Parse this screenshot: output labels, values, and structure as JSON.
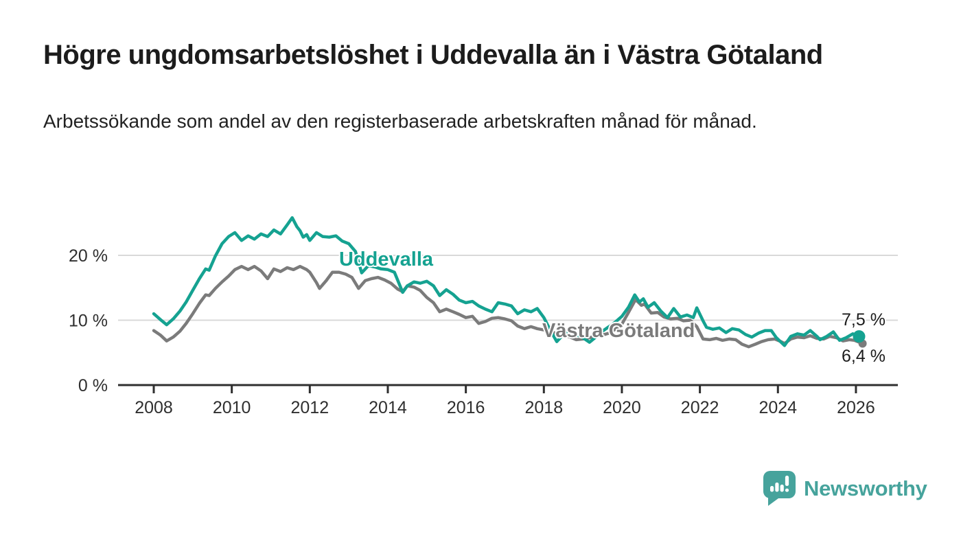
{
  "header": {
    "title": "Högre ungdomsarbetslöshet i Uddevalla än i Västra Götaland",
    "subtitle": "Arbetssökande som andel av den registerbaserade arbetskraften månad för månad."
  },
  "chart_data": {
    "type": "line",
    "title": "Högre ungdomsarbetslöshet i Uddevalla än i Västra Götaland",
    "subtitle": "Arbetssökande som andel av den registerbaserade arbetskraften månad för månad.",
    "grid": "horizontal-only",
    "legend_position": "inline-labels-on-lines",
    "x_axis": {
      "label": "",
      "range": [
        2007.1,
        2027.1
      ],
      "ticks": [
        2008,
        2010,
        2012,
        2014,
        2016,
        2018,
        2020,
        2022,
        2024,
        2026
      ],
      "tick_labels": [
        "2008",
        "2010",
        "2012",
        "2014",
        "2016",
        "2018",
        "2020",
        "2022",
        "2024",
        "2026"
      ]
    },
    "y_axis": {
      "label": "",
      "unit": "%",
      "range": [
        0,
        27
      ],
      "ticks": [
        0,
        10,
        20
      ],
      "tick_labels": [
        "0 %",
        "10 %",
        "20 %"
      ]
    },
    "series": [
      {
        "name": "Uddevalla",
        "color": "#15a291",
        "end_value": 7.5,
        "end_label": "7,5 %",
        "points": [
          [
            2008.0,
            11.0
          ],
          [
            2008.17,
            10.1
          ],
          [
            2008.33,
            9.3
          ],
          [
            2008.5,
            10.2
          ],
          [
            2008.67,
            11.4
          ],
          [
            2008.83,
            12.8
          ],
          [
            2009.0,
            14.6
          ],
          [
            2009.17,
            16.4
          ],
          [
            2009.33,
            17.9
          ],
          [
            2009.42,
            17.7
          ],
          [
            2009.58,
            19.9
          ],
          [
            2009.75,
            21.8
          ],
          [
            2009.92,
            22.9
          ],
          [
            2010.08,
            23.5
          ],
          [
            2010.25,
            22.3
          ],
          [
            2010.42,
            23.0
          ],
          [
            2010.58,
            22.5
          ],
          [
            2010.75,
            23.3
          ],
          [
            2010.92,
            22.9
          ],
          [
            2011.08,
            23.9
          ],
          [
            2011.25,
            23.3
          ],
          [
            2011.42,
            24.7
          ],
          [
            2011.55,
            25.8
          ],
          [
            2011.67,
            24.4
          ],
          [
            2011.75,
            23.8
          ],
          [
            2011.83,
            22.8
          ],
          [
            2011.92,
            23.2
          ],
          [
            2012.0,
            22.3
          ],
          [
            2012.17,
            23.5
          ],
          [
            2012.33,
            22.9
          ],
          [
            2012.5,
            22.8
          ],
          [
            2012.67,
            23.0
          ],
          [
            2012.83,
            22.2
          ],
          [
            2013.0,
            21.8
          ],
          [
            2013.17,
            20.6
          ],
          [
            2013.33,
            17.3
          ],
          [
            2013.5,
            18.4
          ],
          [
            2013.67,
            18.2
          ],
          [
            2013.83,
            17.9
          ],
          [
            2014.0,
            17.8
          ],
          [
            2014.17,
            17.4
          ],
          [
            2014.38,
            14.3
          ],
          [
            2014.5,
            15.3
          ],
          [
            2014.67,
            15.9
          ],
          [
            2014.83,
            15.7
          ],
          [
            2015.0,
            16.0
          ],
          [
            2015.17,
            15.3
          ],
          [
            2015.33,
            13.8
          ],
          [
            2015.5,
            14.7
          ],
          [
            2015.67,
            14.0
          ],
          [
            2015.83,
            13.1
          ],
          [
            2016.0,
            12.7
          ],
          [
            2016.17,
            12.9
          ],
          [
            2016.33,
            12.2
          ],
          [
            2016.5,
            11.7
          ],
          [
            2016.67,
            11.3
          ],
          [
            2016.83,
            12.7
          ],
          [
            2017.0,
            12.5
          ],
          [
            2017.17,
            12.2
          ],
          [
            2017.33,
            11.0
          ],
          [
            2017.5,
            11.6
          ],
          [
            2017.67,
            11.3
          ],
          [
            2017.83,
            11.8
          ],
          [
            2018.0,
            10.4
          ],
          [
            2018.17,
            8.4
          ],
          [
            2018.33,
            6.7
          ],
          [
            2018.5,
            7.8
          ],
          [
            2018.67,
            8.2
          ],
          [
            2018.83,
            7.8
          ],
          [
            2019.0,
            7.3
          ],
          [
            2019.17,
            6.6
          ],
          [
            2019.33,
            7.4
          ],
          [
            2019.5,
            8.3
          ],
          [
            2019.67,
            9.0
          ],
          [
            2019.83,
            9.7
          ],
          [
            2020.0,
            10.6
          ],
          [
            2020.17,
            12.0
          ],
          [
            2020.33,
            13.9
          ],
          [
            2020.45,
            12.8
          ],
          [
            2020.55,
            13.3
          ],
          [
            2020.67,
            12.0
          ],
          [
            2020.83,
            12.7
          ],
          [
            2021.0,
            11.4
          ],
          [
            2021.17,
            10.4
          ],
          [
            2021.33,
            11.8
          ],
          [
            2021.5,
            10.5
          ],
          [
            2021.67,
            10.8
          ],
          [
            2021.83,
            10.4
          ],
          [
            2021.92,
            11.9
          ],
          [
            2022.08,
            9.9
          ],
          [
            2022.17,
            8.9
          ],
          [
            2022.33,
            8.6
          ],
          [
            2022.5,
            8.8
          ],
          [
            2022.67,
            8.1
          ],
          [
            2022.83,
            8.7
          ],
          [
            2023.0,
            8.5
          ],
          [
            2023.17,
            7.8
          ],
          [
            2023.33,
            7.4
          ],
          [
            2023.5,
            8.0
          ],
          [
            2023.67,
            8.4
          ],
          [
            2023.83,
            8.4
          ],
          [
            2023.96,
            7.3
          ],
          [
            2024.17,
            6.1
          ],
          [
            2024.33,
            7.5
          ],
          [
            2024.5,
            7.9
          ],
          [
            2024.67,
            7.7
          ],
          [
            2024.83,
            8.4
          ],
          [
            2025.0,
            7.5
          ],
          [
            2025.08,
            7.0
          ],
          [
            2025.25,
            7.5
          ],
          [
            2025.42,
            8.2
          ],
          [
            2025.58,
            6.9
          ],
          [
            2025.75,
            7.3
          ],
          [
            2025.92,
            7.9
          ],
          [
            2026.08,
            7.5
          ]
        ]
      },
      {
        "name": "Västra Götaland",
        "color": "#7b7b7b",
        "end_value": 6.4,
        "end_label": "6,4 %",
        "points": [
          [
            2008.0,
            8.4
          ],
          [
            2008.17,
            7.7
          ],
          [
            2008.33,
            6.8
          ],
          [
            2008.5,
            7.4
          ],
          [
            2008.67,
            8.3
          ],
          [
            2008.83,
            9.5
          ],
          [
            2009.0,
            11.0
          ],
          [
            2009.17,
            12.6
          ],
          [
            2009.33,
            13.9
          ],
          [
            2009.42,
            13.8
          ],
          [
            2009.58,
            14.9
          ],
          [
            2009.75,
            15.9
          ],
          [
            2009.92,
            16.8
          ],
          [
            2010.08,
            17.8
          ],
          [
            2010.25,
            18.3
          ],
          [
            2010.42,
            17.8
          ],
          [
            2010.58,
            18.3
          ],
          [
            2010.75,
            17.6
          ],
          [
            2010.92,
            16.4
          ],
          [
            2011.08,
            17.9
          ],
          [
            2011.25,
            17.5
          ],
          [
            2011.42,
            18.1
          ],
          [
            2011.58,
            17.8
          ],
          [
            2011.75,
            18.3
          ],
          [
            2011.92,
            17.8
          ],
          [
            2012.0,
            17.4
          ],
          [
            2012.17,
            15.8
          ],
          [
            2012.25,
            14.9
          ],
          [
            2012.42,
            16.1
          ],
          [
            2012.58,
            17.4
          ],
          [
            2012.75,
            17.4
          ],
          [
            2012.92,
            17.1
          ],
          [
            2013.08,
            16.6
          ],
          [
            2013.25,
            14.9
          ],
          [
            2013.42,
            16.1
          ],
          [
            2013.58,
            16.4
          ],
          [
            2013.75,
            16.6
          ],
          [
            2013.92,
            16.2
          ],
          [
            2014.08,
            15.7
          ],
          [
            2014.25,
            14.8
          ],
          [
            2014.38,
            14.4
          ],
          [
            2014.5,
            15.3
          ],
          [
            2014.67,
            15.1
          ],
          [
            2014.83,
            14.6
          ],
          [
            2015.0,
            13.5
          ],
          [
            2015.17,
            12.7
          ],
          [
            2015.33,
            11.3
          ],
          [
            2015.5,
            11.7
          ],
          [
            2015.67,
            11.3
          ],
          [
            2015.83,
            10.9
          ],
          [
            2016.0,
            10.4
          ],
          [
            2016.17,
            10.6
          ],
          [
            2016.33,
            9.5
          ],
          [
            2016.5,
            9.8
          ],
          [
            2016.67,
            10.3
          ],
          [
            2016.83,
            10.4
          ],
          [
            2017.0,
            10.2
          ],
          [
            2017.17,
            9.9
          ],
          [
            2017.33,
            9.1
          ],
          [
            2017.5,
            8.7
          ],
          [
            2017.67,
            9.0
          ],
          [
            2017.83,
            8.7
          ],
          [
            2018.0,
            8.5
          ],
          [
            2018.17,
            8.3
          ],
          [
            2018.33,
            7.9
          ],
          [
            2018.5,
            7.7
          ],
          [
            2018.67,
            7.4
          ],
          [
            2018.83,
            7.0
          ],
          [
            2019.0,
            7.1
          ],
          [
            2019.17,
            7.3
          ],
          [
            2019.33,
            7.5
          ],
          [
            2019.5,
            7.7
          ],
          [
            2019.67,
            8.0
          ],
          [
            2019.83,
            8.6
          ],
          [
            2020.0,
            9.4
          ],
          [
            2020.17,
            11.2
          ],
          [
            2020.35,
            13.2
          ],
          [
            2020.5,
            12.3
          ],
          [
            2020.58,
            12.5
          ],
          [
            2020.75,
            11.1
          ],
          [
            2020.92,
            11.2
          ],
          [
            2021.08,
            10.5
          ],
          [
            2021.25,
            10.2
          ],
          [
            2021.42,
            10.3
          ],
          [
            2021.58,
            9.9
          ],
          [
            2021.75,
            10.0
          ],
          [
            2021.92,
            9.0
          ],
          [
            2022.08,
            7.1
          ],
          [
            2022.25,
            7.0
          ],
          [
            2022.42,
            7.2
          ],
          [
            2022.58,
            6.9
          ],
          [
            2022.75,
            7.1
          ],
          [
            2022.92,
            7.0
          ],
          [
            2023.08,
            6.3
          ],
          [
            2023.25,
            5.9
          ],
          [
            2023.42,
            6.3
          ],
          [
            2023.58,
            6.7
          ],
          [
            2023.75,
            7.0
          ],
          [
            2023.92,
            7.1
          ],
          [
            2024.08,
            6.7
          ],
          [
            2024.17,
            6.4
          ],
          [
            2024.33,
            7.1
          ],
          [
            2024.5,
            7.4
          ],
          [
            2024.67,
            7.3
          ],
          [
            2024.83,
            7.6
          ],
          [
            2025.0,
            7.2
          ],
          [
            2025.17,
            7.1
          ],
          [
            2025.33,
            7.5
          ],
          [
            2025.5,
            7.3
          ],
          [
            2025.67,
            6.8
          ],
          [
            2025.83,
            7.0
          ],
          [
            2025.96,
            6.9
          ],
          [
            2026.17,
            6.4
          ]
        ]
      }
    ],
    "colors": {
      "grid": "#d9d9d9",
      "axis": "#2f2f2f",
      "uddevalla": "#15a291",
      "vastra_gotaland": "#7b7b7b"
    }
  },
  "annotations": {
    "uddevalla_label": "Uddevalla",
    "vastra_gotaland_label": "Västra Götaland",
    "end_label_top": "7,5 %",
    "end_label_bottom": "6,4 %"
  },
  "footer": {
    "brand": "Newsworthy",
    "brand_color": "#46a39c",
    "logo_icon": "newsworthy-speech-bubble-barchart-icon"
  }
}
